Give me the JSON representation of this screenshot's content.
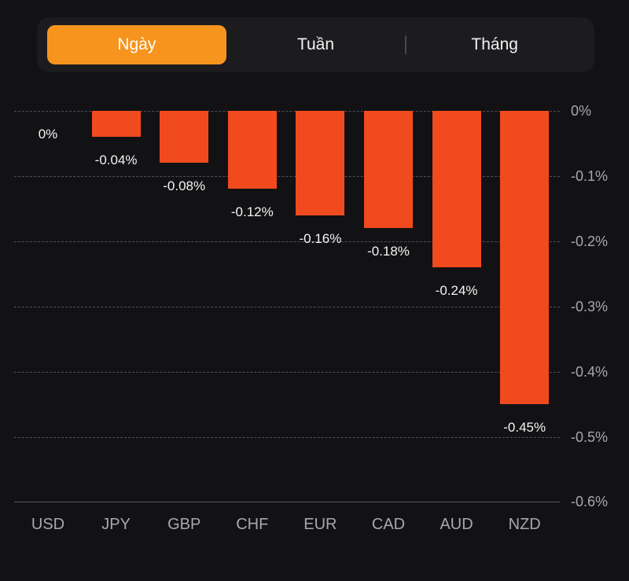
{
  "tab_bar": {
    "tabs": [
      {
        "label": "Ngày",
        "active": true
      },
      {
        "label": "Tuần",
        "active": false
      },
      {
        "label": "Tháng",
        "active": false
      }
    ],
    "active_color": "#F7941E"
  },
  "chart_data": {
    "type": "bar",
    "title": "",
    "categories": [
      "USD",
      "JPY",
      "GBP",
      "CHF",
      "EUR",
      "CAD",
      "AUD",
      "NZD"
    ],
    "values": [
      0,
      -0.04,
      -0.08,
      -0.12,
      -0.16,
      -0.18,
      -0.24,
      -0.45
    ],
    "value_labels": [
      "0%",
      "-0.04%",
      "-0.08%",
      "-0.12%",
      "-0.16%",
      "-0.18%",
      "-0.24%",
      "-0.45%"
    ],
    "unit": "percent",
    "y_axis": {
      "side": "right",
      "ticks": [
        "0%",
        "-0.1%",
        "-0.2%",
        "-0.3%",
        "-0.4%",
        "-0.5%",
        "-0.6%"
      ],
      "tick_values": [
        0,
        -0.1,
        -0.2,
        -0.3,
        -0.4,
        -0.5,
        -0.6
      ],
      "range": [
        0,
        -0.6
      ]
    },
    "grid": {
      "style": "dashed-horizontal",
      "zero_line": "dashed",
      "bottom_axis": "solid"
    },
    "bar_color": "#F14A1F",
    "label_color": "#F4F4F5",
    "axis_text_color": "#A7A8AC",
    "background_color": "#121214",
    "legend": "none"
  }
}
